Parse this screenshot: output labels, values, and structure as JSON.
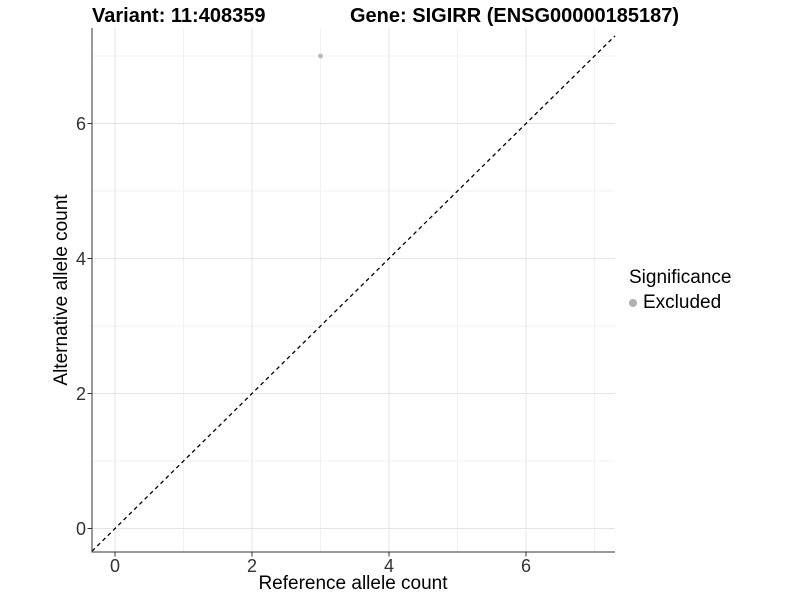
{
  "title": {
    "variant": "Variant: 11:408359",
    "gene": "Gene: SIGIRR (ENSG00000185187)"
  },
  "axes": {
    "x_label": "Reference allele count",
    "y_label": "Alternative allele count"
  },
  "legend": {
    "title": "Significance",
    "items": [
      {
        "label": "Excluded",
        "color": "#b0b0b0"
      }
    ]
  },
  "chart_data": {
    "type": "scatter",
    "title": "Variant: 11:408359 — Gene: SIGIRR (ENSG00000185187)",
    "xlabel": "Reference allele count",
    "ylabel": "Alternative allele count",
    "series": [
      {
        "name": "Excluded",
        "color": "#bdbdbd",
        "points": [
          {
            "x": 3,
            "y": 7
          }
        ]
      }
    ],
    "reference_line": {
      "kind": "identity",
      "slope": 1,
      "intercept": 0,
      "style": "dashed",
      "color": "#000000"
    },
    "x_major_ticks": [
      0,
      2,
      4,
      6
    ],
    "x_minor_ticks": [
      1,
      3,
      5,
      7
    ],
    "y_major_ticks": [
      0,
      2,
      4,
      6
    ],
    "y_minor_ticks": [
      1,
      3,
      5,
      7
    ],
    "xlim": [
      -0.336,
      7.299
    ],
    "ylim": [
      -0.348,
      7.415
    ],
    "grid": true,
    "legend_position": "right"
  },
  "colors": {
    "background": "#ffffff",
    "grid_major": "#e4e4e4",
    "grid_minor": "#f1f1f1",
    "axis_line": "#333333",
    "tick_mark": "#333333",
    "tick_label": "#333333",
    "point": "#bdbdbd",
    "legend_point": "#b0b0b0",
    "dashed_line": "#000000"
  }
}
